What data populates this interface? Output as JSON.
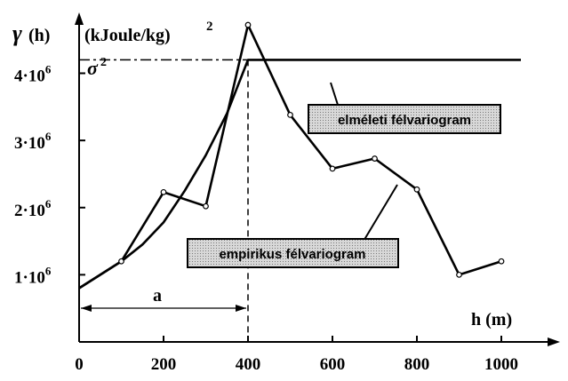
{
  "chart_data": {
    "type": "line",
    "ylabel_symbol": "γ",
    "ylabel_arg": "(h)",
    "ylabel_unit": "(kJoule/kg)",
    "ylabel_unit_exp": "2",
    "xlabel": "h  (m)",
    "xlim": [
      0,
      1000
    ],
    "ylim": [
      0,
      4800000
    ],
    "x_ticks": [
      0,
      200,
      400,
      600,
      800,
      1000
    ],
    "x_tick_labels": [
      "0",
      "200",
      "400",
      "600",
      "800",
      "1000"
    ],
    "y_ticks": [
      1000000,
      2000000,
      3000000,
      4000000
    ],
    "y_tick_labels": [
      {
        "mant": "1",
        "dot": "·",
        "base": "10",
        "exp": "6"
      },
      {
        "mant": "2",
        "dot": "·",
        "base": "10",
        "exp": "6"
      },
      {
        "mant": "3",
        "dot": "·",
        "base": "10",
        "exp": "6"
      },
      {
        "mant": "4",
        "dot": "·",
        "base": "10",
        "exp": "6"
      }
    ],
    "sill_label": "σ",
    "sill_label_exp": "2",
    "sill": 4200000,
    "range": 400,
    "range_label": "a",
    "series": [
      {
        "name": "elméleti félvariogram",
        "kind": "theoretical",
        "x": [
          0,
          50,
          100,
          150,
          200,
          250,
          300,
          350,
          400,
          1000
        ],
        "y": [
          800000,
          1000000,
          1200000,
          1450000,
          1780000,
          2250000,
          2780000,
          3400000,
          4200000,
          4200000
        ]
      },
      {
        "name": "empirikus félvariogram",
        "kind": "empirical",
        "x": [
          0,
          100,
          200,
          300,
          400,
          500,
          600,
          700,
          800,
          900,
          1000
        ],
        "y": [
          800000,
          1200000,
          2230000,
          2020000,
          4720000,
          3380000,
          2580000,
          2730000,
          2270000,
          1000000,
          1200000
        ]
      }
    ]
  }
}
